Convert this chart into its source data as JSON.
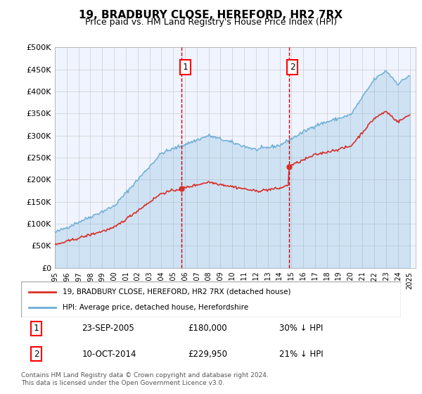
{
  "title": "19, BRADBURY CLOSE, HEREFORD, HR2 7RX",
  "subtitle": "Price paid vs. HM Land Registry's House Price Index (HPI)",
  "hpi_color": "#6baed6",
  "price_color": "#d73027",
  "vline_color": "#cc0000",
  "vline_style": "--",
  "background_color": "#ffffff",
  "plot_bg_color": "#f0f4ff",
  "grid_color": "#cccccc",
  "ylim": [
    0,
    500000
  ],
  "yticks": [
    0,
    50000,
    100000,
    150000,
    200000,
    250000,
    300000,
    350000,
    400000,
    450000,
    500000
  ],
  "ytick_labels": [
    "£0",
    "£50K",
    "£100K",
    "£150K",
    "£200K",
    "£250K",
    "£300K",
    "£350K",
    "£400K",
    "£450K",
    "£500K"
  ],
  "xmin": 1995.0,
  "xmax": 2025.5,
  "transaction1_x": 2005.73,
  "transaction1_y": 180000,
  "transaction1_label": "1",
  "transaction1_date": "23-SEP-2005",
  "transaction1_price": "£180,000",
  "transaction1_hpi": "30% ↓ HPI",
  "transaction2_x": 2014.78,
  "transaction2_y": 229950,
  "transaction2_label": "2",
  "transaction2_date": "10-OCT-2014",
  "transaction2_price": "£229,950",
  "transaction2_hpi": "21% ↓ HPI",
  "legend_line1": "19, BRADBURY CLOSE, HEREFORD, HR2 7RX (detached house)",
  "legend_line2": "HPI: Average price, detached house, Herefordshire",
  "footer": "Contains HM Land Registry data © Crown copyright and database right 2024.\nThis data is licensed under the Open Government Licence v3.0."
}
